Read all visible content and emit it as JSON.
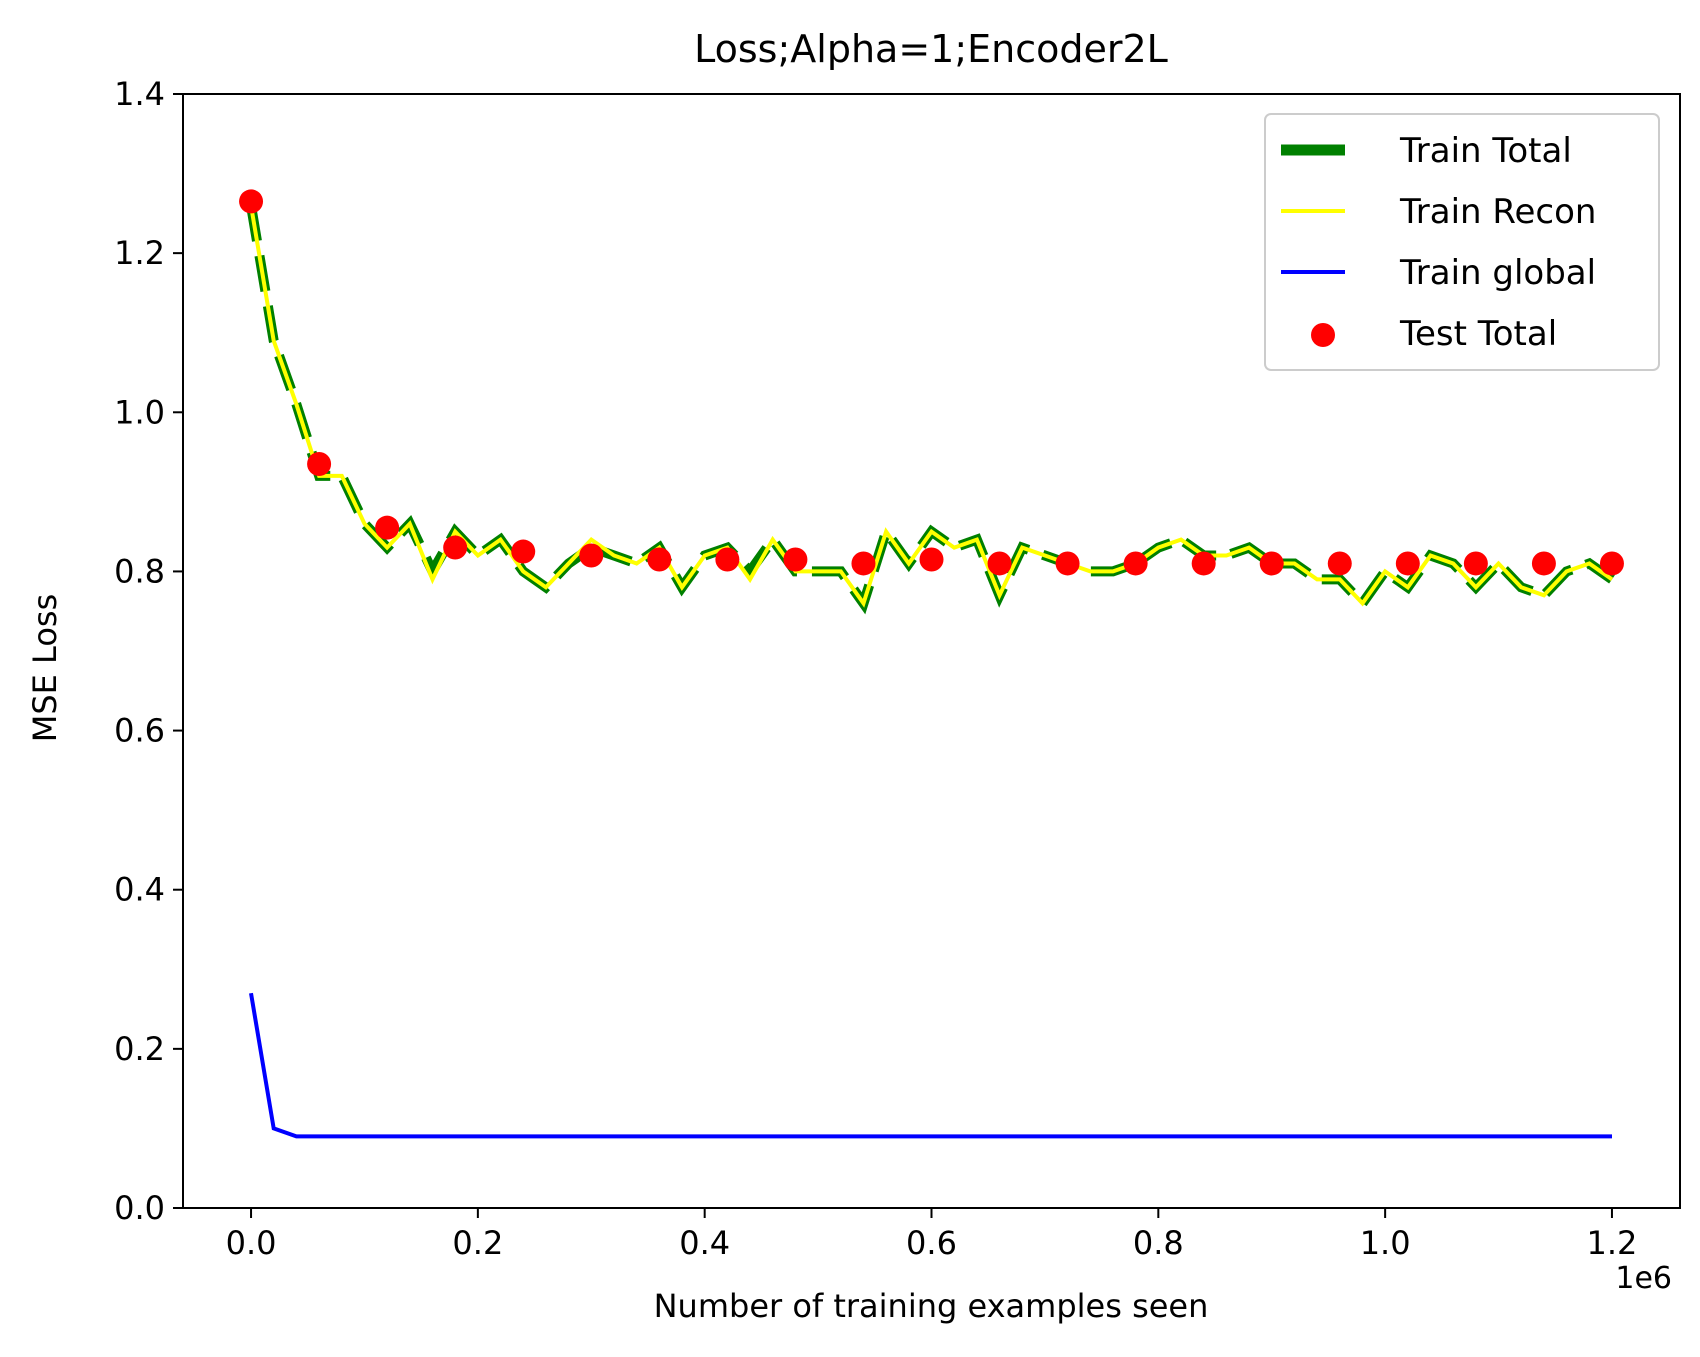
{
  "chart_data": {
    "type": "line",
    "title": "Loss;Alpha=1;Encoder2L",
    "xlabel": "Number of training examples seen",
    "ylabel": "MSE Loss",
    "x_offset_label": "1e6",
    "xlim": [
      -0.06,
      1.26
    ],
    "ylim": [
      0.0,
      1.4
    ],
    "x_ticks": [
      0.0,
      0.2,
      0.4,
      0.6,
      0.8,
      1.0,
      1.2
    ],
    "x_tick_labels": [
      "0.0",
      "0.2",
      "0.4",
      "0.6",
      "0.8",
      "1.0",
      "1.2"
    ],
    "y_ticks": [
      0.0,
      0.2,
      0.4,
      0.6,
      0.8,
      1.0,
      1.2,
      1.4
    ],
    "y_tick_labels": [
      "0.0",
      "0.2",
      "0.4",
      "0.6",
      "0.8",
      "1.0",
      "1.2",
      "1.4"
    ],
    "grid": false,
    "legend_position": "top-right",
    "x": [
      0.0,
      0.02,
      0.04,
      0.06,
      0.08,
      0.1,
      0.12,
      0.14,
      0.16,
      0.18,
      0.2,
      0.22,
      0.24,
      0.26,
      0.28,
      0.3,
      0.32,
      0.34,
      0.36,
      0.38,
      0.4,
      0.42,
      0.44,
      0.46,
      0.48,
      0.5,
      0.52,
      0.54,
      0.56,
      0.58,
      0.6,
      0.62,
      0.64,
      0.66,
      0.68,
      0.7,
      0.72,
      0.74,
      0.76,
      0.78,
      0.8,
      0.82,
      0.84,
      0.86,
      0.88,
      0.9,
      0.92,
      0.94,
      0.96,
      0.98,
      1.0,
      1.02,
      1.04,
      1.06,
      1.08,
      1.1,
      1.12,
      1.14,
      1.16,
      1.18,
      1.2
    ],
    "series": [
      {
        "name": "Train Total",
        "color": "#008000",
        "style": "dashed-thick",
        "values": [
          1.26,
          1.09,
          1.01,
          0.92,
          0.92,
          0.86,
          0.83,
          0.86,
          0.8,
          0.85,
          0.82,
          0.84,
          0.8,
          0.78,
          0.81,
          0.83,
          0.82,
          0.81,
          0.83,
          0.78,
          0.82,
          0.83,
          0.8,
          0.84,
          0.8,
          0.8,
          0.8,
          0.76,
          0.85,
          0.81,
          0.85,
          0.83,
          0.84,
          0.77,
          0.83,
          0.82,
          0.81,
          0.8,
          0.8,
          0.81,
          0.83,
          0.84,
          0.82,
          0.82,
          0.83,
          0.81,
          0.81,
          0.79,
          0.79,
          0.76,
          0.8,
          0.78,
          0.82,
          0.81,
          0.78,
          0.81,
          0.78,
          0.77,
          0.8,
          0.81,
          0.79
        ]
      },
      {
        "name": "Train Recon",
        "color": "#ffff00",
        "style": "solid",
        "values": [
          1.26,
          1.09,
          1.01,
          0.92,
          0.92,
          0.86,
          0.83,
          0.86,
          0.79,
          0.85,
          0.82,
          0.84,
          0.8,
          0.78,
          0.81,
          0.84,
          0.82,
          0.81,
          0.83,
          0.78,
          0.82,
          0.83,
          0.79,
          0.84,
          0.8,
          0.8,
          0.8,
          0.76,
          0.85,
          0.81,
          0.85,
          0.83,
          0.84,
          0.77,
          0.83,
          0.82,
          0.81,
          0.8,
          0.8,
          0.81,
          0.83,
          0.84,
          0.82,
          0.82,
          0.83,
          0.81,
          0.81,
          0.79,
          0.79,
          0.76,
          0.8,
          0.78,
          0.82,
          0.81,
          0.78,
          0.81,
          0.78,
          0.77,
          0.8,
          0.81,
          0.79
        ]
      },
      {
        "name": "Train global",
        "color": "#0000ff",
        "style": "solid",
        "values": [
          0.27,
          0.1,
          0.09,
          0.09,
          0.09,
          0.09,
          0.09,
          0.09,
          0.09,
          0.09,
          0.09,
          0.09,
          0.09,
          0.09,
          0.09,
          0.09,
          0.09,
          0.09,
          0.09,
          0.09,
          0.09,
          0.09,
          0.09,
          0.09,
          0.09,
          0.09,
          0.09,
          0.09,
          0.09,
          0.09,
          0.09,
          0.09,
          0.09,
          0.09,
          0.09,
          0.09,
          0.09,
          0.09,
          0.09,
          0.09,
          0.09,
          0.09,
          0.09,
          0.09,
          0.09,
          0.09,
          0.09,
          0.09,
          0.09,
          0.09,
          0.09,
          0.09,
          0.09,
          0.09,
          0.09,
          0.09,
          0.09,
          0.09,
          0.09,
          0.09,
          0.09
        ]
      }
    ],
    "scatter": {
      "name": "Test Total",
      "color": "#ff0000",
      "x": [
        0.0,
        0.06,
        0.12,
        0.18,
        0.24,
        0.3,
        0.36,
        0.42,
        0.48,
        0.54,
        0.6,
        0.66,
        0.72,
        0.78,
        0.84,
        0.9,
        0.96,
        1.02,
        1.08,
        1.14,
        1.2
      ],
      "y": [
        1.265,
        0.935,
        0.855,
        0.83,
        0.825,
        0.82,
        0.815,
        0.815,
        0.815,
        0.81,
        0.815,
        0.81,
        0.81,
        0.81,
        0.81,
        0.81,
        0.81,
        0.81,
        0.81,
        0.81,
        0.81
      ]
    }
  }
}
